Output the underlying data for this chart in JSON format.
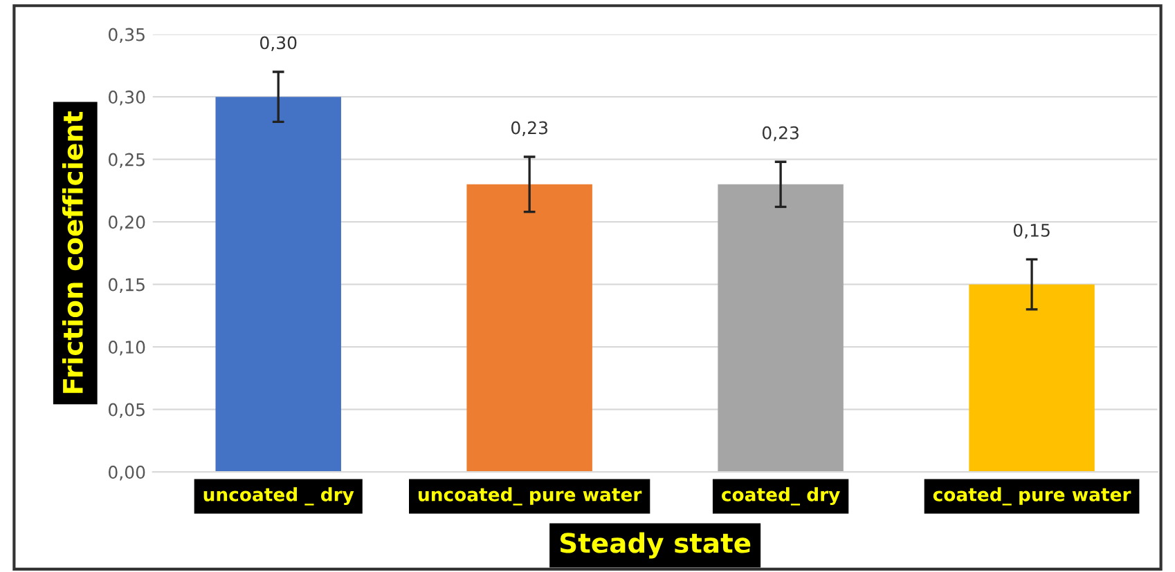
{
  "chart_data": {
    "type": "bar",
    "xlabel": "Steady state",
    "ylabel": "Friction coefficient",
    "categories": [
      "uncoated _ dry",
      "uncoated_ pure water",
      "coated_ dry",
      "coated_ pure water"
    ],
    "values": [
      0.3,
      0.23,
      0.23,
      0.15
    ],
    "colors": [
      "#4472c4",
      "#ed7d31",
      "#a5a5a5",
      "#ffc000"
    ],
    "errors": [
      0.02,
      0.022,
      0.018,
      0.02
    ],
    "value_labels": [
      "0,30",
      "0,23",
      "0,23",
      "0,15"
    ],
    "ylim": [
      0,
      0.35
    ],
    "yticks": [
      {
        "value": 0,
        "label": "0,00"
      },
      {
        "value": 0.05,
        "label": "0,05"
      },
      {
        "value": 0.1,
        "label": "0,10"
      },
      {
        "value": 0.15,
        "label": "0,15"
      },
      {
        "value": 0.2,
        "label": "0,20"
      },
      {
        "value": 0.25,
        "label": "0,25"
      },
      {
        "value": 0.3,
        "label": "0,30"
      },
      {
        "value": 0.35,
        "label": "0,35"
      }
    ],
    "grid": "y"
  }
}
